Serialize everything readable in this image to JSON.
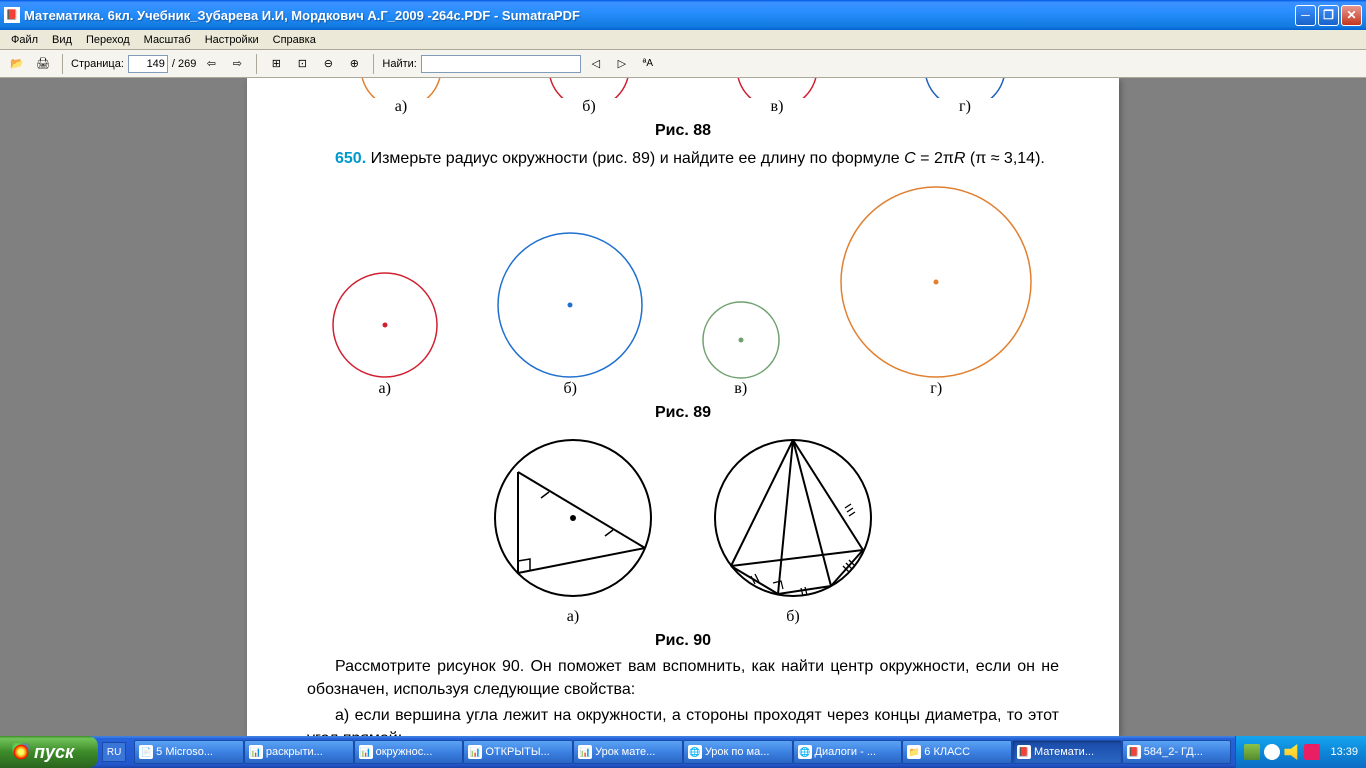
{
  "window": {
    "title": "Математика. 6кл. Учебник_Зубарева И.И, Мордкович А.Г_2009 -264с.PDF - SumatraPDF"
  },
  "menu": {
    "file": "Файл",
    "view": "Вид",
    "goto": "Переход",
    "zoom": "Масштаб",
    "settings": "Настройки",
    "help": "Справка"
  },
  "toolbar": {
    "page_label": "Страница:",
    "page_current": "149",
    "page_total": "/ 269",
    "find_label": "Найти:"
  },
  "doc": {
    "fig88": {
      "labels": [
        "а)",
        "б)",
        "в)",
        "г)"
      ],
      "caption": "Рис. 88",
      "arc_colors": [
        "#e08030",
        "#d02030",
        "#d02030",
        "#2060c0"
      ]
    },
    "problem650": {
      "num": "650.",
      "text": "Измерьте радиус окружности (рис. 89) и найдите ее длину по формуле C = 2πR (π ≈ 3,14)."
    },
    "fig89": {
      "circles": [
        {
          "r": 52,
          "color": "#d02030",
          "label": "а)"
        },
        {
          "r": 72,
          "color": "#2070d0",
          "label": "б)"
        },
        {
          "r": 38,
          "color": "#70a070",
          "label": "в)"
        },
        {
          "r": 95,
          "color": "#e08030",
          "label": "г)"
        }
      ],
      "caption": "Рис. 89"
    },
    "fig90": {
      "labels": [
        "а)",
        "б)"
      ],
      "caption": "Рис. 90"
    },
    "bottom_text": {
      "p1": "Рассмотрите рисунок 90. Он поможет вам вспомнить, как найти центр окружности, если он не обозначен, используя следующие свойства:",
      "p2": "а) если вершина угла лежит на окружности, а стороны проходят через концы диаметра, то этот угол прямой;"
    }
  },
  "taskbar": {
    "start": "пуск",
    "lang": "RU",
    "items": [
      {
        "label": "5 Microso...",
        "ico": "📄"
      },
      {
        "label": "раскрыти...",
        "ico": "📊"
      },
      {
        "label": "окружнос...",
        "ico": "📊"
      },
      {
        "label": "ОТКРЫТЫ...",
        "ico": "📊"
      },
      {
        "label": "Урок мате...",
        "ico": "📊"
      },
      {
        "label": "Урок по ма...",
        "ico": "🌐"
      },
      {
        "label": "Диалоги - ...",
        "ico": "🌐"
      },
      {
        "label": "6 КЛАСС",
        "ico": "📁"
      },
      {
        "label": "Математи...",
        "ico": "📕"
      },
      {
        "label": "584_2- ГД...",
        "ico": "📕"
      }
    ],
    "clock": "13:39"
  }
}
